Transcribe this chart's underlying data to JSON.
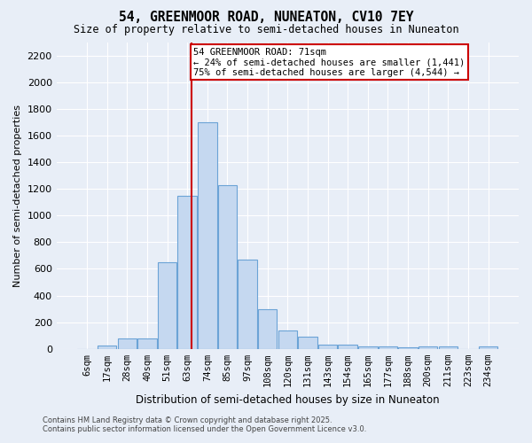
{
  "title_line1": "54, GREENMOOR ROAD, NUNEATON, CV10 7EY",
  "title_line2": "Size of property relative to semi-detached houses in Nuneaton",
  "xlabel": "Distribution of semi-detached houses by size in Nuneaton",
  "ylabel": "Number of semi-detached properties",
  "bar_labels": [
    "6sqm",
    "17sqm",
    "28sqm",
    "40sqm",
    "51sqm",
    "63sqm",
    "74sqm",
    "85sqm",
    "97sqm",
    "108sqm",
    "120sqm",
    "131sqm",
    "143sqm",
    "154sqm",
    "165sqm",
    "177sqm",
    "188sqm",
    "200sqm",
    "211sqm",
    "223sqm",
    "234sqm"
  ],
  "bar_values": [
    0,
    25,
    80,
    80,
    650,
    1150,
    1700,
    1230,
    670,
    300,
    135,
    90,
    35,
    30,
    20,
    20,
    15,
    20,
    20,
    0,
    20
  ],
  "bar_color": "#c5d8f0",
  "bar_edge_color": "#6ba3d6",
  "background_color": "#e8eef7",
  "grid_color": "white",
  "vline_color": "#cc0000",
  "annotation_text": "54 GREENMOOR ROAD: 71sqm\n← 24% of semi-detached houses are smaller (1,441)\n75% of semi-detached houses are larger (4,544) →",
  "annotation_box_color": "white",
  "annotation_box_edge": "#cc0000",
  "ylim": [
    0,
    2300
  ],
  "yticks": [
    0,
    200,
    400,
    600,
    800,
    1000,
    1200,
    1400,
    1600,
    1800,
    2000,
    2200
  ],
  "footer_line1": "Contains HM Land Registry data © Crown copyright and database right 2025.",
  "footer_line2": "Contains public sector information licensed under the Open Government Licence v3.0."
}
